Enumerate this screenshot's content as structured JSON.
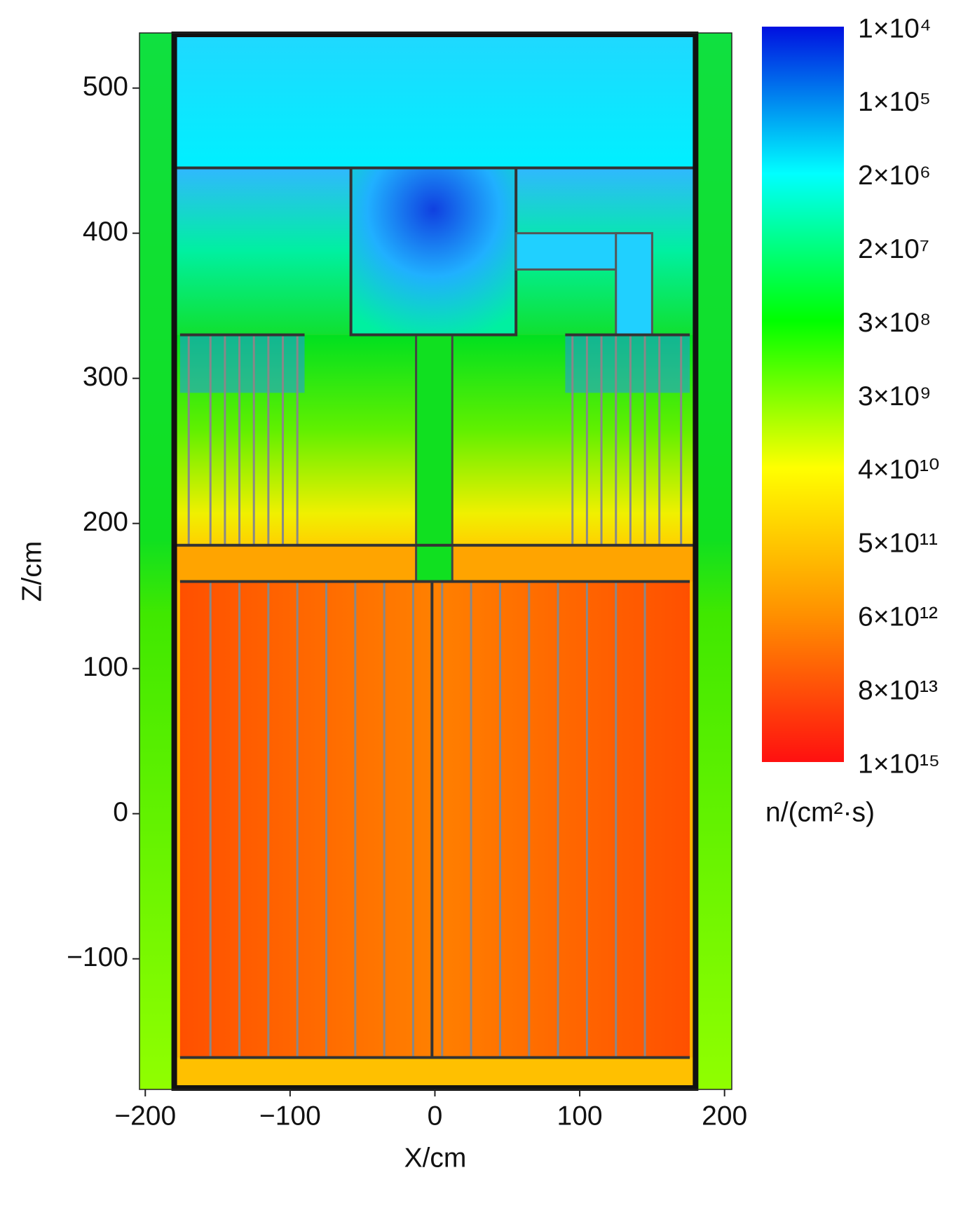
{
  "chart_data": {
    "type": "heatmap",
    "xlabel": "X/cm",
    "ylabel": "Z/cm",
    "xlim": [
      -204,
      205
    ],
    "ylim": [
      -190,
      538
    ],
    "xticks": [
      {
        "value": -200,
        "label": "−200"
      },
      {
        "value": -100,
        "label": "−100"
      },
      0,
      100,
      200
    ],
    "yticks": [
      {
        "value": -100,
        "label": "−100"
      },
      0,
      100,
      200,
      300,
      400,
      500
    ],
    "colorbar": {
      "label": "n/(cm²·s)",
      "colors": [
        "#0010e0",
        "#00ffff",
        "#00ff00",
        "#ffff00",
        "#ff9000",
        "#ff1010"
      ],
      "ticks": [
        {
          "value": 10000,
          "label": "1×10⁴"
        },
        {
          "value": 100000,
          "label": "1×10⁵"
        },
        {
          "value": 2000000,
          "label": "2×10⁶"
        },
        {
          "value": 20000000,
          "label": "2×10⁷"
        },
        {
          "value": 300000000,
          "label": "3×10⁸"
        },
        {
          "value": 3000000000,
          "label": "3×10⁹"
        },
        {
          "value": 40000000000,
          "label": "4×10¹⁰"
        },
        {
          "value": 500000000000,
          "label": "5×10¹¹"
        },
        {
          "value": 6000000000000,
          "label": "6×10¹²"
        },
        {
          "value": 80000000000000,
          "label": "8×10¹³"
        },
        {
          "value": 1000000000000000,
          "label": "1×10¹⁵"
        }
      ]
    }
  }
}
